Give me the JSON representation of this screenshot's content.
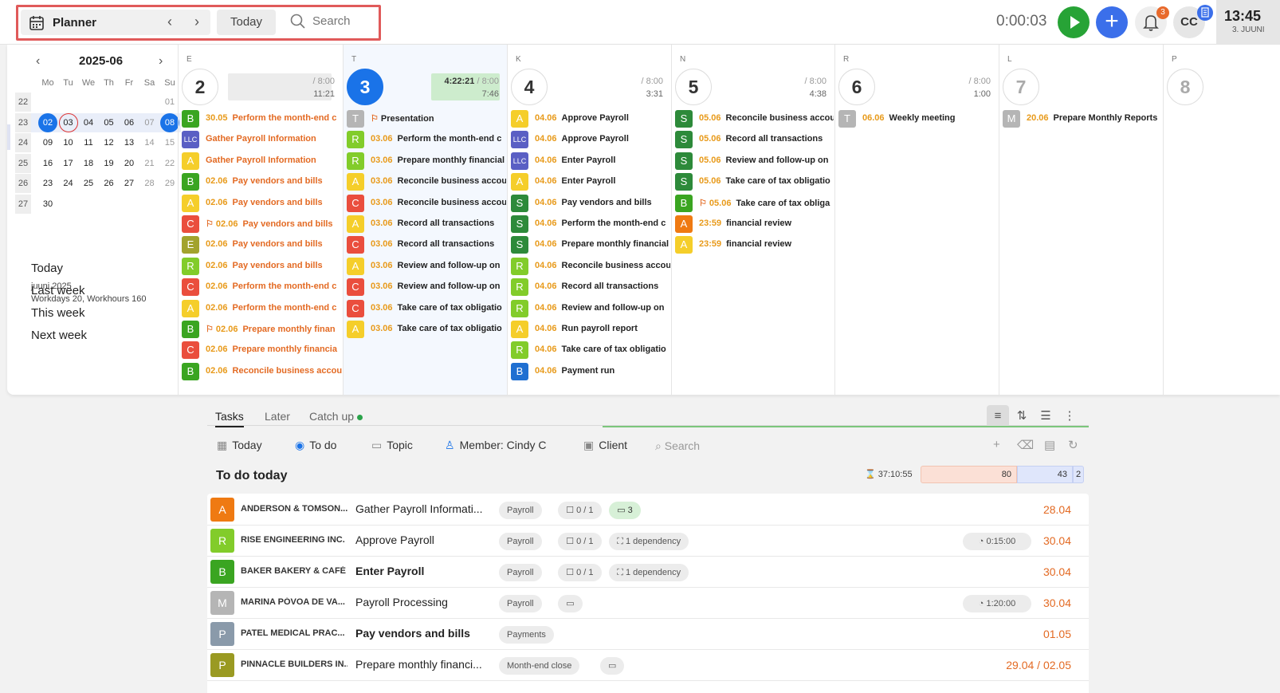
{
  "topbar": {
    "title": "Planner",
    "today_label": "Today",
    "search_placeholder": "Search",
    "timer": "0:00:03",
    "notification_count": "3",
    "user_initials": "CC",
    "clock_time": "13:45",
    "clock_date": "3. JUUNI"
  },
  "minical": {
    "month": "2025-06",
    "dow": [
      "Mo",
      "Tu",
      "We",
      "Th",
      "Fr",
      "Sa",
      "Su"
    ],
    "weeks": [
      {
        "wk": "22",
        "days": [
          "",
          "",
          "",
          "",
          "",
          "",
          "01"
        ]
      },
      {
        "wk": "23",
        "days": [
          "02",
          "03",
          "04",
          "05",
          "06",
          "07",
          "08"
        ]
      },
      {
        "wk": "24",
        "days": [
          "09",
          "10",
          "11",
          "12",
          "13",
          "14",
          "15"
        ]
      },
      {
        "wk": "25",
        "days": [
          "16",
          "17",
          "18",
          "19",
          "20",
          "21",
          "22"
        ]
      },
      {
        "wk": "26",
        "days": [
          "23",
          "24",
          "25",
          "26",
          "27",
          "28",
          "29"
        ]
      },
      {
        "wk": "27",
        "days": [
          "30",
          "",
          "",
          "",
          "",
          "",
          ""
        ]
      }
    ],
    "summary_month": "juuni 2025",
    "summary_work": "Workdays 20, Workhours 160",
    "quick": [
      "Today",
      "Last week",
      "This week",
      "Next week"
    ]
  },
  "colors": {
    "A": "#f5ce2a",
    "B": "#3aa521",
    "C": "#ea4e3d",
    "R": "#82cc2a",
    "S": "#2d8a3a",
    "E": "#a2a32d",
    "T": "#b5b5b5",
    "M": "#b5b5b5",
    "LLC": "#5a5fc4",
    "Bblue": "#1f6fd1",
    "Aorange": "#ef7a12",
    "P": "#8a9aaa",
    "P2": "#9a9a22"
  },
  "days": [
    {
      "dow": "E",
      "num": "2",
      "hours_a": "/ 8:00",
      "hours_b": "11:21",
      "tasks": [
        {
          "b": "B",
          "c": "B",
          "date": "30.05",
          "title": "Perform the month-end c",
          "hl": true
        },
        {
          "b": "LLC",
          "c": "LLC",
          "date": "",
          "title": "Gather Payroll Information",
          "hl": true
        },
        {
          "b": "A",
          "c": "A",
          "date": "",
          "title": "Gather Payroll Information",
          "hl": true
        },
        {
          "b": "B",
          "c": "B",
          "date": "02.06",
          "title": "Pay vendors and bills",
          "hl": true
        },
        {
          "b": "A",
          "c": "A",
          "date": "02.06",
          "title": "Pay vendors and bills",
          "hl": true
        },
        {
          "b": "C",
          "c": "C",
          "date": "02.06",
          "title": "Pay vendors and bills",
          "hl": true,
          "flag": true
        },
        {
          "b": "E",
          "c": "E",
          "date": "02.06",
          "title": "Pay vendors and bills",
          "hl": true
        },
        {
          "b": "R",
          "c": "R",
          "date": "02.06",
          "title": "Pay vendors and bills",
          "hl": true
        },
        {
          "b": "C",
          "c": "C",
          "date": "02.06",
          "title": "Perform the month-end c",
          "hl": true
        },
        {
          "b": "A",
          "c": "A",
          "date": "02.06",
          "title": "Perform the month-end c",
          "hl": true
        },
        {
          "b": "B",
          "c": "B",
          "date": "02.06",
          "title": "Prepare monthly finan",
          "hl": true,
          "flag": true
        },
        {
          "b": "C",
          "c": "C",
          "date": "02.06",
          "title": "Prepare monthly financia",
          "hl": true
        },
        {
          "b": "B",
          "c": "B",
          "date": "02.06",
          "title": "Reconcile business accou",
          "hl": true
        }
      ]
    },
    {
      "dow": "T",
      "num": "3",
      "hours_a": "4:22:21 / 8:00",
      "hours_b": "7:46",
      "tasks": [
        {
          "b": "T",
          "c": "T",
          "date": "",
          "title": "Presentation",
          "flag": true
        },
        {
          "b": "R",
          "c": "R",
          "date": "03.06",
          "title": "Perform the month-end c"
        },
        {
          "b": "R",
          "c": "R",
          "date": "03.06",
          "title": "Prepare monthly financial"
        },
        {
          "b": "A",
          "c": "A",
          "date": "03.06",
          "title": "Reconcile business accou"
        },
        {
          "b": "C",
          "c": "C",
          "date": "03.06",
          "title": "Reconcile business accou"
        },
        {
          "b": "A",
          "c": "A",
          "date": "03.06",
          "title": "Record all transactions"
        },
        {
          "b": "C",
          "c": "C",
          "date": "03.06",
          "title": "Record all transactions"
        },
        {
          "b": "A",
          "c": "A",
          "date": "03.06",
          "title": "Review and follow-up on"
        },
        {
          "b": "C",
          "c": "C",
          "date": "03.06",
          "title": "Review and follow-up on"
        },
        {
          "b": "C",
          "c": "C",
          "date": "03.06",
          "title": "Take care of tax obligatio"
        },
        {
          "b": "A",
          "c": "A",
          "date": "03.06",
          "title": "Take care of tax obligatio"
        }
      ]
    },
    {
      "dow": "K",
      "num": "4",
      "hours_a": "/ 8:00",
      "hours_b": "3:31",
      "tasks": [
        {
          "b": "A",
          "c": "A",
          "date": "04.06",
          "title": "Approve Payroll"
        },
        {
          "b": "LLC",
          "c": "LLC",
          "date": "04.06",
          "title": "Approve Payroll"
        },
        {
          "b": "LLC",
          "c": "LLC",
          "date": "04.06",
          "title": "Enter Payroll"
        },
        {
          "b": "A",
          "c": "A",
          "date": "04.06",
          "title": "Enter Payroll"
        },
        {
          "b": "S",
          "c": "S",
          "date": "04.06",
          "title": "Pay vendors and bills"
        },
        {
          "b": "S",
          "c": "S",
          "date": "04.06",
          "title": "Perform the month-end c"
        },
        {
          "b": "S",
          "c": "S",
          "date": "04.06",
          "title": "Prepare monthly financial"
        },
        {
          "b": "R",
          "c": "R",
          "date": "04.06",
          "title": "Reconcile business accou"
        },
        {
          "b": "R",
          "c": "R",
          "date": "04.06",
          "title": "Record all transactions"
        },
        {
          "b": "R",
          "c": "R",
          "date": "04.06",
          "title": "Review and follow-up on"
        },
        {
          "b": "A",
          "c": "A",
          "date": "04.06",
          "title": "Run payroll report"
        },
        {
          "b": "R",
          "c": "R",
          "date": "04.06",
          "title": "Take care of tax obligatio"
        },
        {
          "b": "B",
          "c": "Bblue",
          "date": "04.06",
          "title": "Payment run"
        }
      ]
    },
    {
      "dow": "N",
      "num": "5",
      "hours_a": "/ 8:00",
      "hours_b": "4:38",
      "tasks": [
        {
          "b": "S",
          "c": "S",
          "date": "05.06",
          "title": "Reconcile business accou"
        },
        {
          "b": "S",
          "c": "S",
          "date": "05.06",
          "title": "Record all transactions"
        },
        {
          "b": "S",
          "c": "S",
          "date": "05.06",
          "title": "Review and follow-up on"
        },
        {
          "b": "S",
          "c": "S",
          "date": "05.06",
          "title": "Take care of tax obligatio"
        },
        {
          "b": "B",
          "c": "B",
          "date": "05.06",
          "title": "Take care of tax obliga",
          "flag": true
        },
        {
          "b": "A",
          "c": "Aorange",
          "date": "23:59",
          "title": "financial review"
        },
        {
          "b": "A",
          "c": "A",
          "date": "23:59",
          "title": "financial review"
        }
      ]
    },
    {
      "dow": "R",
      "num": "6",
      "hours_a": "/ 8:00",
      "hours_b": "1:00",
      "tasks": [
        {
          "b": "T",
          "c": "T",
          "date": "06.06",
          "title": "Weekly meeting"
        }
      ]
    },
    {
      "dow": "L",
      "num": "7",
      "hours_a": "",
      "hours_b": "",
      "tasks": [
        {
          "b": "M",
          "c": "M",
          "date": "20.06",
          "title": "Prepare Monthly Reports"
        }
      ]
    },
    {
      "dow": "P",
      "num": "8",
      "hours_a": "",
      "hours_b": "",
      "tasks": []
    }
  ],
  "tabs": [
    "Tasks",
    "Later",
    "Catch up"
  ],
  "filters": {
    "today": "Today",
    "todo": "To do",
    "topic": "Topic",
    "member": "Member: Cindy C",
    "client": "Client",
    "search": "Search"
  },
  "section": {
    "title": "To do today",
    "total": "37:10:55",
    "bar1": "80",
    "bar2": "43",
    "bar3": "2"
  },
  "rows": [
    {
      "av": "A",
      "color": "#ef7a12",
      "client": "ANDERSON & TOMSON...",
      "task": "Gather Payroll Informati...",
      "bold": false,
      "topic": "Payroll",
      "check": "0 / 1",
      "extra": "3",
      "extra_type": "comments",
      "dur": "",
      "date": "28.04"
    },
    {
      "av": "R",
      "color": "#82cc2a",
      "client": "RISE ENGINEERING INC.",
      "task": "Approve Payroll",
      "bold": false,
      "topic": "Payroll",
      "check": "0 / 1",
      "extra": "1 dependency",
      "extra_type": "dep",
      "dur": "0:15:00",
      "date": "30.04"
    },
    {
      "av": "B",
      "color": "#3aa521",
      "client": "BAKER BAKERY & CAFÉ",
      "task": "Enter Payroll",
      "bold": true,
      "topic": "Payroll",
      "check": "0 / 1",
      "extra": "1 dependency",
      "extra_type": "dep",
      "dur": "",
      "date": "30.04"
    },
    {
      "av": "M",
      "color": "#b5b5b5",
      "client": "MARINA PÓVOA DE VA...",
      "task": "Payroll Processing",
      "bold": false,
      "topic": "Payroll",
      "check": "",
      "extra": "",
      "extra_type": "comment-empty",
      "dur": "1:20:00",
      "date": "30.04"
    },
    {
      "av": "P",
      "color": "#8a9aaa",
      "client": "PATEL MEDICAL PRAC...",
      "task": "Pay vendors and bills",
      "bold": true,
      "topic": "Payments",
      "check": "",
      "extra": "",
      "extra_type": "none",
      "dur": "",
      "date": "01.05"
    },
    {
      "av": "P",
      "color": "#9a9a22",
      "client": "PINNACLE BUILDERS IN...",
      "task": "Prepare monthly financi...",
      "bold": false,
      "topic": "Month-end close",
      "check": "",
      "extra": "",
      "extra_type": "comment-empty",
      "dur": "",
      "date": "29.04 / 02.05"
    }
  ]
}
